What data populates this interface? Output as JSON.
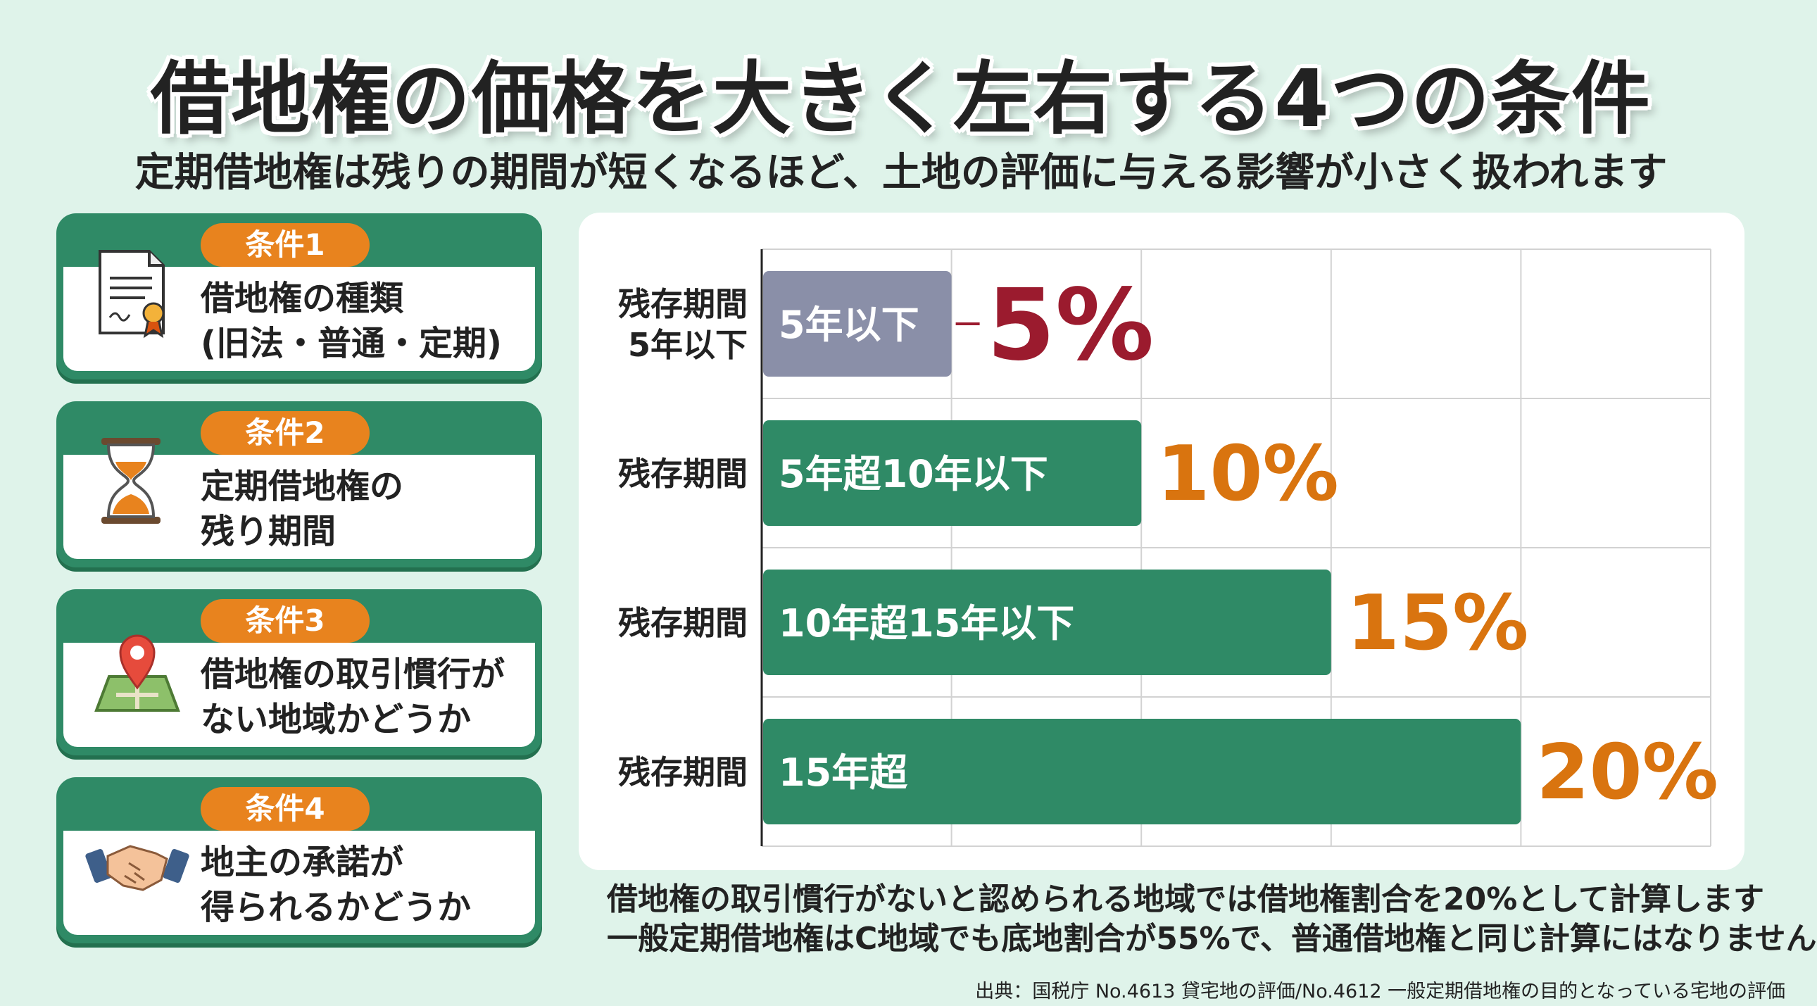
{
  "title": "借地権の価格を大きく左右する4つの条件",
  "subtitle": "定期借地権は残りの期間が短くなるほど、土地の評価に与える影響が小さく扱われます",
  "conditions": [
    {
      "badge": "条件1",
      "line1": "借地権の種類",
      "line2": "(旧法・普通・定期)",
      "icon": "certificate-icon"
    },
    {
      "badge": "条件2",
      "line1": "定期借地権の",
      "line2": "残り期間",
      "icon": "hourglass-icon"
    },
    {
      "badge": "条件3",
      "line1": "借地権の取引慣行が",
      "line2": "ない地域かどうか",
      "icon": "map-pin-icon"
    },
    {
      "badge": "条件4",
      "line1": "地主の承諾が",
      "line2": "得られるかどうか",
      "icon": "handshake-icon"
    }
  ],
  "chart_data": {
    "type": "bar",
    "orientation": "horizontal",
    "categories": [
      {
        "label_lines": [
          "残存期間",
          "5年以下"
        ],
        "bar_label": "5年以下",
        "value": 5,
        "value_label": "5%",
        "color": "#8a8fa8",
        "value_color": "#9b1b2e"
      },
      {
        "label_lines": [
          "残存期間"
        ],
        "bar_label": "5年超10年以下",
        "value": 10,
        "value_label": "10%",
        "color": "#2f8a66",
        "value_color": "#d9740f"
      },
      {
        "label_lines": [
          "残存期間"
        ],
        "bar_label": "10年超15年以下",
        "value": 15,
        "value_label": "15%",
        "color": "#2f8a66",
        "value_color": "#d9740f"
      },
      {
        "label_lines": [
          "残存期間"
        ],
        "bar_label": "15年超",
        "value": 20,
        "value_label": "20%",
        "color": "#2f8a66",
        "value_color": "#d9740f"
      }
    ],
    "xlim": [
      0,
      25
    ],
    "grid": true
  },
  "notes": [
    "借地権の取引慣行がないと認められる地域では借地権割合を20%として計算します",
    "一般定期借地権はC地域でも底地割合が55%で、普通借地権と同じ計算にはなりません"
  ],
  "source": "出典：国税庁 No.4613 貸宅地の評価/No.4612 一般定期借地権の目的となっている宅地の評価"
}
